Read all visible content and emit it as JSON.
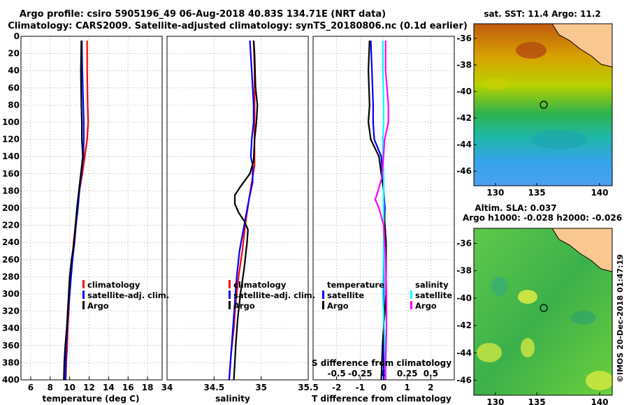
{
  "title": {
    "line1": "Argo profile: csiro 5905196_49 06-Aug-2018 40.83S 134.71E (NRT data)",
    "line2": "Climatology: CARS2009. Satellite-adjusted climatology: synTS_20180806.nc (0.1d earlier)"
  },
  "colors": {
    "climatology": "#ff0000",
    "satellite": "#0000ff",
    "argo": "#000000",
    "satellite_salinity": "#00ffff",
    "argo_salinity": "#ff00ff"
  },
  "map_sst": {
    "title": "sat. SST: 11.4 Argo: 11.2",
    "lon_ticks": [
      "130",
      "135",
      "140"
    ],
    "lat_ticks": [
      "-36",
      "-38",
      "-40",
      "-42",
      "-44",
      "-46"
    ]
  },
  "map_sla": {
    "title_line1": "Altim. SLA: 0.037",
    "title_line2": "Argo h1000: -0.028 h2000: -0.026",
    "lon_ticks": [
      "130",
      "135",
      "140"
    ],
    "lat_ticks": [
      "-36",
      "-38",
      "-40",
      "-42",
      "-44",
      "-46"
    ]
  },
  "watermark": "©IMOS 20-Dec-2018 01:47:19",
  "chart_data": [
    {
      "type": "line",
      "id": "temperature",
      "xlabel": "temperature (deg C)",
      "ylabel": "",
      "xlim": [
        5,
        19.5
      ],
      "ylim": [
        400,
        0
      ],
      "x_ticks": [
        "6",
        "8",
        "10",
        "12",
        "14",
        "16",
        "18"
      ],
      "y_ticks": [
        "0",
        "20",
        "40",
        "60",
        "80",
        "100",
        "120",
        "140",
        "160",
        "180",
        "200",
        "220",
        "240",
        "260",
        "280",
        "300",
        "320",
        "340",
        "360",
        "380",
        "400"
      ],
      "grid": true,
      "legend": [
        "climatology",
        "satellite-adj. clim.",
        "Argo"
      ],
      "series": [
        {
          "name": "climatology",
          "color": "#ff0000",
          "points": [
            [
              11.8,
              5
            ],
            [
              11.8,
              40
            ],
            [
              11.85,
              80
            ],
            [
              11.9,
              100
            ],
            [
              11.8,
              120
            ],
            [
              11.55,
              140
            ],
            [
              11.3,
              160
            ],
            [
              11.0,
              180
            ],
            [
              10.8,
              200
            ],
            [
              10.6,
              220
            ],
            [
              10.4,
              240
            ],
            [
              10.3,
              260
            ],
            [
              10.1,
              280
            ],
            [
              10.0,
              300
            ],
            [
              9.9,
              320
            ],
            [
              9.8,
              340
            ],
            [
              9.75,
              360
            ],
            [
              9.65,
              380
            ],
            [
              9.6,
              400
            ]
          ]
        },
        {
          "name": "satellite-adj. clim.",
          "color": "#0000ff",
          "points": [
            [
              11.25,
              5
            ],
            [
              11.3,
              40
            ],
            [
              11.4,
              80
            ],
            [
              11.45,
              100
            ],
            [
              11.45,
              120
            ],
            [
              11.4,
              140
            ],
            [
              11.2,
              160
            ],
            [
              11.0,
              180
            ],
            [
              10.85,
              200
            ],
            [
              10.65,
              220
            ],
            [
              10.5,
              240
            ],
            [
              10.3,
              260
            ],
            [
              10.15,
              280
            ],
            [
              10.0,
              300
            ],
            [
              9.85,
              320
            ],
            [
              9.75,
              340
            ],
            [
              9.65,
              360
            ],
            [
              9.6,
              380
            ],
            [
              9.55,
              400
            ]
          ]
        },
        {
          "name": "Argo",
          "color": "#000000",
          "points": [
            [
              11.2,
              5
            ],
            [
              11.15,
              40
            ],
            [
              11.2,
              80
            ],
            [
              11.25,
              100
            ],
            [
              11.25,
              120
            ],
            [
              11.35,
              140
            ],
            [
              11.15,
              160
            ],
            [
              10.95,
              180
            ],
            [
              10.75,
              200
            ],
            [
              10.6,
              220
            ],
            [
              10.45,
              240
            ],
            [
              10.2,
              260
            ],
            [
              10.0,
              280
            ],
            [
              9.9,
              300
            ],
            [
              9.8,
              320
            ],
            [
              9.7,
              340
            ],
            [
              9.55,
              360
            ],
            [
              9.45,
              380
            ],
            [
              9.4,
              400
            ]
          ]
        }
      ]
    },
    {
      "type": "line",
      "id": "salinity",
      "xlabel": "salinity",
      "ylabel": "",
      "xlim": [
        34,
        35.5
      ],
      "ylim": [
        400,
        0
      ],
      "x_ticks": [
        "34",
        "34.5",
        "35",
        "35.5"
      ],
      "grid": true,
      "legend": [
        "climatology",
        "satellite-adj. clim.",
        "Argo"
      ],
      "series": [
        {
          "name": "climatology",
          "color": "#ff0000",
          "points": [
            [
              34.92,
              5
            ],
            [
              34.93,
              40
            ],
            [
              34.93,
              80
            ],
            [
              34.93,
              100
            ],
            [
              34.93,
              120
            ],
            [
              34.93,
              150
            ],
            [
              34.9,
              170
            ],
            [
              34.87,
              190
            ],
            [
              34.83,
              220
            ],
            [
              34.8,
              250
            ],
            [
              34.76,
              280
            ],
            [
              34.73,
              310
            ],
            [
              34.71,
              340
            ],
            [
              34.68,
              370
            ],
            [
              34.66,
              400
            ]
          ]
        },
        {
          "name": "satellite-adj. clim.",
          "color": "#0000ff",
          "points": [
            [
              34.88,
              5
            ],
            [
              34.9,
              40
            ],
            [
              34.92,
              80
            ],
            [
              34.92,
              100
            ],
            [
              34.9,
              120
            ],
            [
              34.89,
              140
            ],
            [
              34.91,
              150
            ],
            [
              34.91,
              170
            ],
            [
              34.87,
              190
            ],
            [
              34.82,
              220
            ],
            [
              34.77,
              250
            ],
            [
              34.74,
              280
            ],
            [
              34.72,
              310
            ],
            [
              34.7,
              340
            ],
            [
              34.68,
              370
            ],
            [
              34.66,
              400
            ]
          ]
        },
        {
          "name": "Argo",
          "color": "#000000",
          "points": [
            [
              34.92,
              5
            ],
            [
              34.93,
              20
            ],
            [
              34.94,
              60
            ],
            [
              34.96,
              80
            ],
            [
              34.95,
              100
            ],
            [
              34.93,
              120
            ],
            [
              34.92,
              145
            ],
            [
              34.88,
              160
            ],
            [
              34.78,
              175
            ],
            [
              34.72,
              185
            ],
            [
              34.72,
              195
            ],
            [
              34.76,
              205
            ],
            [
              34.82,
              215
            ],
            [
              34.86,
              225
            ],
            [
              34.85,
              240
            ],
            [
              34.82,
              270
            ],
            [
              34.78,
              300
            ],
            [
              34.75,
              330
            ],
            [
              34.73,
              360
            ],
            [
              34.72,
              380
            ],
            [
              34.71,
              400
            ]
          ]
        }
      ]
    },
    {
      "type": "line",
      "id": "difference",
      "xlabel": "T difference from climatology",
      "x2label": "S difference from climatology",
      "ylabel": "",
      "xlim": [
        -3,
        3
      ],
      "x2lim": [
        -0.75,
        0.75
      ],
      "ylim": [
        400,
        0
      ],
      "x_ticks": [
        "-2",
        "-1",
        "0",
        "1",
        "2"
      ],
      "x2_ticks": [
        "-0.5",
        "-0.25",
        "0",
        "0.25",
        "0.5"
      ],
      "grid": true,
      "legend_temperature_title": "temperature",
      "legend_salinity_title": "salinity",
      "legend_temperature": [
        "satellite",
        "Argo"
      ],
      "legend_salinity": [
        "satellite",
        "Argo"
      ],
      "series": [
        {
          "name": "temperature satellite",
          "color": "#0000ff",
          "points": [
            [
              -0.55,
              5
            ],
            [
              -0.5,
              40
            ],
            [
              -0.45,
              80
            ],
            [
              -0.45,
              100
            ],
            [
              -0.4,
              120
            ],
            [
              -0.1,
              140
            ],
            [
              -0.05,
              160
            ],
            [
              0,
              180
            ],
            [
              0.05,
              200
            ],
            [
              0,
              240
            ],
            [
              0,
              300
            ],
            [
              0,
              360
            ],
            [
              0,
              400
            ]
          ]
        },
        {
          "name": "temperature Argo",
          "color": "#000000",
          "points": [
            [
              -0.6,
              5
            ],
            [
              -0.65,
              40
            ],
            [
              -0.6,
              80
            ],
            [
              -0.65,
              100
            ],
            [
              -0.55,
              120
            ],
            [
              -0.2,
              140
            ],
            [
              -0.1,
              160
            ],
            [
              0,
              180
            ],
            [
              0,
              200
            ],
            [
              0.1,
              240
            ],
            [
              0.1,
              300
            ],
            [
              -0.05,
              360
            ],
            [
              -0.1,
              400
            ]
          ]
        },
        {
          "name": "salinity satellite",
          "color": "#00ffff",
          "points": [
            [
              -0.01,
              5
            ],
            [
              -0.01,
              40
            ],
            [
              0,
              80
            ],
            [
              0,
              100
            ],
            [
              -0.01,
              120
            ],
            [
              -0.01,
              140
            ],
            [
              0,
              160
            ],
            [
              0,
              200
            ],
            [
              0,
              250
            ],
            [
              -0.01,
              300
            ],
            [
              0.01,
              350
            ],
            [
              0.02,
              400
            ]
          ]
        },
        {
          "name": "salinity Argo",
          "color": "#ff00ff",
          "points": [
            [
              0.02,
              5
            ],
            [
              0.02,
              40
            ],
            [
              0.05,
              80
            ],
            [
              0.05,
              100
            ],
            [
              0.01,
              120
            ],
            [
              -0.005,
              145
            ],
            [
              -0.02,
              165
            ],
            [
              -0.06,
              180
            ],
            [
              -0.09,
              190
            ],
            [
              -0.05,
              200
            ],
            [
              0,
              220
            ],
            [
              0.02,
              260
            ],
            [
              0.03,
              300
            ],
            [
              0.03,
              340
            ],
            [
              0.02,
              380
            ],
            [
              0.02,
              400
            ]
          ]
        }
      ]
    }
  ]
}
